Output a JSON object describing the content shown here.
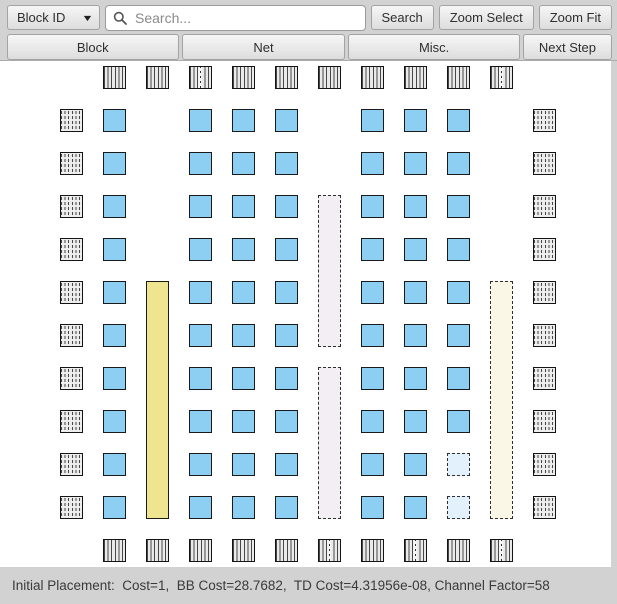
{
  "toolbar": {
    "filter_dropdown": {
      "label": "Block ID",
      "caret_icon": "▼"
    },
    "search": {
      "placeholder": "Search..."
    },
    "buttons": {
      "search": "Search",
      "zoom_select": "Zoom Select",
      "zoom_fit": "Zoom Fit"
    }
  },
  "menu_buttons": {
    "block": "Block",
    "net": "Net",
    "misc": "Misc.",
    "next_step": "Next Step"
  },
  "status_bar": {
    "text": "Initial Placement:  Cost=1,  BB Cost=28.7682,  TD Cost=4.31956e-08, Channel Factor=58"
  },
  "colors": {
    "clb_fill": "#8CCFF2",
    "clb_empty_fill": "#E2F1FB",
    "memory_fill": "#EFE48F",
    "memory_empty_fill": "#FAF7E6",
    "mult_empty_fill": "#F3EDF4",
    "io_base": "#EAEAEA",
    "canvas_bg": "#FFFFFF",
    "toolbar_bg": "#D2D2D2"
  },
  "fpga_grid": {
    "rows": 12,
    "cols": 12,
    "io_blocks": {
      "top": [
        "s",
        "s",
        "d",
        "s",
        "s",
        "s",
        "s",
        "s",
        "s",
        "d"
      ],
      "bottom": [
        "s",
        "s",
        "s",
        "s",
        "s",
        "d",
        "s",
        "d",
        "s",
        "d"
      ],
      "left": [
        "m",
        "m",
        "m",
        "m",
        "m",
        "m",
        "m",
        "m",
        "m",
        "m"
      ],
      "right": [
        "m",
        "m",
        "m",
        "m",
        "m",
        "m",
        "m",
        "m",
        "m",
        "m"
      ]
    },
    "clb_columns": [
      {
        "col": 1,
        "rows": [
          1,
          10
        ]
      },
      {
        "col": 3,
        "rows": [
          1,
          10
        ]
      },
      {
        "col": 4,
        "rows": [
          1,
          10
        ]
      },
      {
        "col": 5,
        "rows": [
          1,
          10
        ]
      },
      {
        "col": 7,
        "rows": [
          1,
          10
        ]
      },
      {
        "col": 8,
        "rows": [
          1,
          10
        ]
      },
      {
        "col": 9,
        "rows": [
          1,
          8
        ]
      }
    ],
    "empty_clb_cells": [
      {
        "col": 9,
        "row": 9
      },
      {
        "col": 9,
        "row": 10
      }
    ],
    "tall_blocks": [
      {
        "type": "memory-block",
        "col": 2,
        "row_start": 5,
        "row_end": 10,
        "style": "placed"
      },
      {
        "type": "empty-mult-slot",
        "col": 6,
        "row_start": 3,
        "row_end": 6,
        "style": "empty"
      },
      {
        "type": "empty-mult-slot",
        "col": 6,
        "row_start": 7,
        "row_end": 10,
        "style": "empty"
      },
      {
        "type": "empty-memory-slot",
        "col": 10,
        "row_start": 5,
        "row_end": 10,
        "style": "empty"
      }
    ]
  }
}
